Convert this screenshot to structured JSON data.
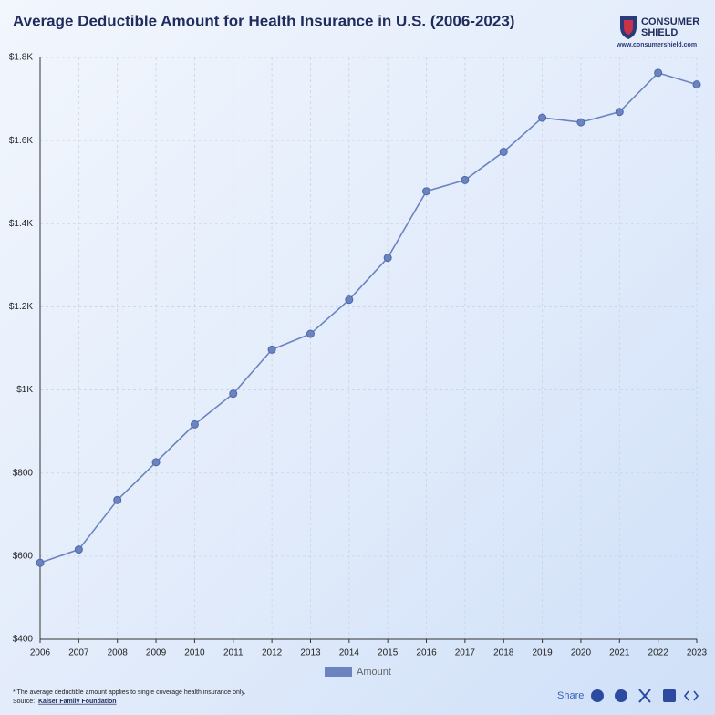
{
  "chart_data": {
    "type": "line",
    "title": "Average Deductible Amount for Health Insurance in U.S. (2006-2023)",
    "brand": {
      "name_line1": "CONSUMER",
      "name_line2": "SHIELD",
      "url": "www.consumershield.com"
    },
    "categories": [
      "2006",
      "2007",
      "2008",
      "2009",
      "2010",
      "2011",
      "2012",
      "2013",
      "2014",
      "2015",
      "2016",
      "2017",
      "2018",
      "2019",
      "2020",
      "2021",
      "2022",
      "2023"
    ],
    "series": [
      {
        "name": "Amount",
        "color": "#6b84c0",
        "values": [
          584,
          616,
          735,
          826,
          917,
          991,
          1097,
          1135,
          1217,
          1318,
          1478,
          1505,
          1573,
          1655,
          1644,
          1669,
          1763,
          1735
        ]
      }
    ],
    "ylim": [
      400,
      1800
    ],
    "yticks": [
      {
        "value": 400,
        "label": "$400"
      },
      {
        "value": 600,
        "label": "$600"
      },
      {
        "value": 800,
        "label": "$800"
      },
      {
        "value": 1000,
        "label": "$1K"
      },
      {
        "value": 1200,
        "label": "$1.2K"
      },
      {
        "value": 1400,
        "label": "$1.4K"
      },
      {
        "value": 1600,
        "label": "$1.6K"
      },
      {
        "value": 1800,
        "label": "$1.8K"
      }
    ],
    "grid": true,
    "footnote": "* The average deductible amount applies to single coverage health insurance only.",
    "source_label": "Source:",
    "source": "Kaiser Family Foundation",
    "share": "Share"
  }
}
